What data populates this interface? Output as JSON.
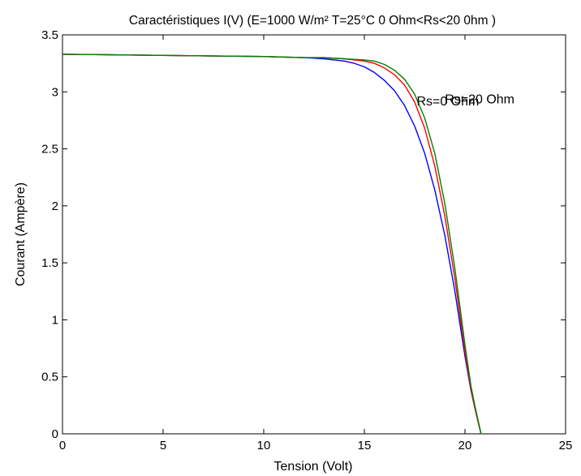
{
  "chart_data": {
    "type": "line",
    "title": "Caractéristiques  I(V) (E=1000 W/m² T=25°C 0 Ohm<Rs<20 0hm )",
    "xlabel": "Tension (Volt)",
    "ylabel": "Courant (Ampère)",
    "xlim": [
      0,
      25
    ],
    "ylim": [
      0,
      3.5
    ],
    "xticks": [
      0,
      5,
      10,
      15,
      20,
      25
    ],
    "yticks": [
      0,
      0.5,
      1,
      1.5,
      2,
      2.5,
      3,
      3.5
    ],
    "xtick_labels": [
      "0",
      "5",
      "10",
      "15",
      "20",
      "25"
    ],
    "ytick_labels": [
      "0",
      "0.5",
      "1",
      "1.5",
      "2",
      "2.5",
      "3",
      "3.5"
    ],
    "grid": false,
    "legend": "none",
    "series": [
      {
        "color": "#0000ff",
        "x": [
          0,
          5,
          10,
          12,
          13,
          14,
          14.5,
          15,
          15.5,
          16,
          16.5,
          17,
          17.5,
          18,
          18.5,
          19,
          19.5,
          20,
          20.3,
          20.5,
          20.7,
          20.8
        ],
        "y": [
          3.33,
          3.32,
          3.31,
          3.3,
          3.29,
          3.27,
          3.25,
          3.22,
          3.17,
          3.1,
          3.01,
          2.88,
          2.7,
          2.46,
          2.14,
          1.74,
          1.25,
          0.68,
          0.38,
          0.22,
          0.07,
          0.0
        ]
      },
      {
        "color": "#ff0000",
        "x": [
          0,
          5,
          10,
          12,
          13,
          14,
          15,
          15.5,
          16,
          16.5,
          17,
          17.5,
          18,
          18.5,
          19,
          19.5,
          20,
          20.3,
          20.5,
          20.7,
          20.8
        ],
        "y": [
          3.33,
          3.32,
          3.31,
          3.3,
          3.3,
          3.29,
          3.27,
          3.25,
          3.21,
          3.15,
          3.06,
          2.91,
          2.68,
          2.35,
          1.91,
          1.36,
          0.72,
          0.39,
          0.22,
          0.07,
          0.0
        ]
      },
      {
        "color": "#008000",
        "x": [
          0,
          5,
          10,
          12,
          13,
          14,
          15,
          15.5,
          16,
          16.5,
          17,
          17.5,
          18,
          18.5,
          19,
          19.5,
          20,
          20.3,
          20.5,
          20.7,
          20.8
        ],
        "y": [
          3.33,
          3.32,
          3.31,
          3.3,
          3.3,
          3.29,
          3.28,
          3.27,
          3.24,
          3.19,
          3.11,
          2.98,
          2.77,
          2.46,
          2.02,
          1.45,
          0.78,
          0.42,
          0.24,
          0.08,
          0.0
        ]
      }
    ],
    "annotations": [
      {
        "text": "Rs=0 Ohm",
        "x": 17.6,
        "y": 2.88
      },
      {
        "text": "Rs=20 Ohm",
        "x": 19.0,
        "y": 2.9
      }
    ]
  }
}
